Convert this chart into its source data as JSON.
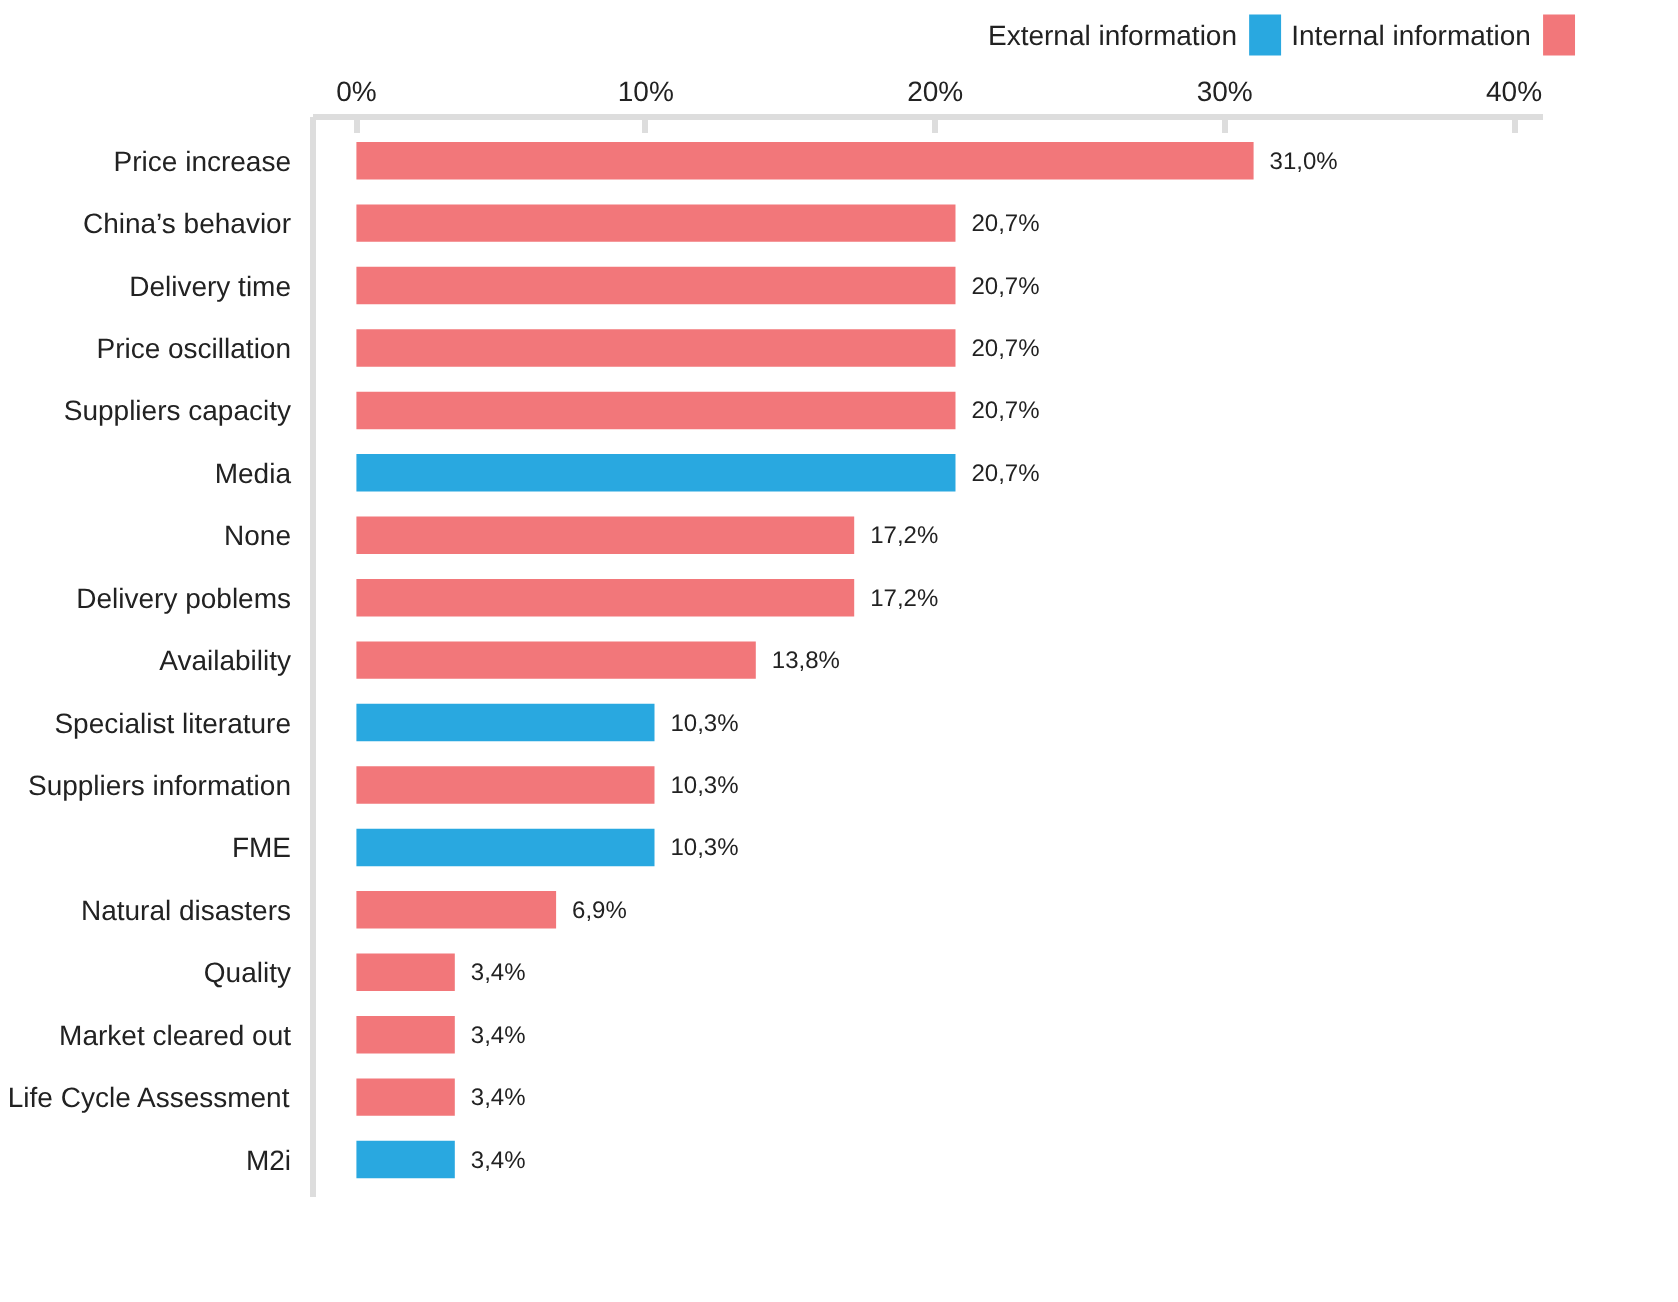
{
  "chart_data": {
    "type": "bar",
    "orientation": "horizontal",
    "legend": "top right",
    "grid": false,
    "categories": [
      "Price increase",
      "China’s behavior",
      "Delivery time",
      "Price oscillation",
      "Suppliers capacity",
      "Media",
      "None",
      "Delivery poblems",
      "Availability",
      "Specialist literature",
      "Suppliers information",
      "FME",
      "Natural disasters",
      "Quality",
      "Market cleared out",
      "Life Cycle Assessment",
      "M2i"
    ],
    "series": [
      {
        "name": "External information",
        "color": "#29a8e0",
        "values": [
          null,
          null,
          null,
          null,
          null,
          20.7,
          null,
          null,
          null,
          10.3,
          null,
          10.3,
          null,
          null,
          null,
          null,
          3.4
        ],
        "value_labels": [
          null,
          null,
          null,
          null,
          null,
          "20,7%",
          null,
          null,
          null,
          "10,3%",
          null,
          "10,3%",
          null,
          null,
          null,
          null,
          "3,4%"
        ]
      },
      {
        "name": "Internal information",
        "color": "#f2777a",
        "values": [
          31.0,
          20.7,
          20.7,
          20.7,
          20.7,
          null,
          17.2,
          17.2,
          13.8,
          null,
          10.3,
          null,
          6.9,
          3.4,
          3.4,
          3.4,
          null
        ],
        "value_labels": [
          "31,0%",
          "20,7%",
          "20,7%",
          "20,7%",
          "20,7%",
          null,
          "17,2%",
          "17,2%",
          "13,8%",
          null,
          "10,3%",
          null,
          "6,9%",
          "3,4%",
          "3,4%",
          "3,4%",
          null
        ]
      }
    ],
    "xlim": [
      -1.5,
      41
    ],
    "xticks": [
      {
        "value": 0,
        "label": "0%"
      },
      {
        "value": 10,
        "label": "10%"
      },
      {
        "value": 20,
        "label": "20%"
      },
      {
        "value": 30,
        "label": "30%"
      },
      {
        "value": 40,
        "label": "40%"
      }
    ]
  }
}
